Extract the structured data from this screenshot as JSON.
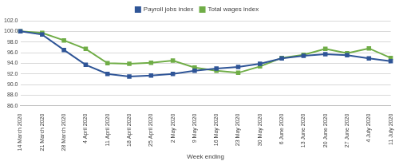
{
  "chart_data": {
    "type": "line",
    "x_label": "Week ending",
    "categories": [
      "14 March 2020",
      "21 March 2020",
      "28 March 2020",
      "4 April 2020",
      "11 April 2020",
      "18 April 2020",
      "25 April 2020",
      "2 May 2020",
      "9 May 2020",
      "16 May 2020",
      "23 May 2020",
      "30 May 2020",
      "6 June 2020",
      "13 June 2020",
      "20 June 2020",
      "27 June 2020",
      "4 July 2020",
      "11 July 2020"
    ],
    "series": [
      {
        "name": "Payroll jobs index",
        "color": "#2f5597",
        "marker": "square",
        "line_style": "solid",
        "values": [
          100.0,
          99.4,
          96.5,
          93.7,
          92.0,
          91.5,
          91.7,
          92.0,
          92.6,
          93.0,
          93.3,
          93.9,
          94.9,
          95.4,
          95.7,
          95.5,
          94.9,
          94.4
        ]
      },
      {
        "name": "Total wages index",
        "color": "#70ad47",
        "marker": "square",
        "line_style": "solid",
        "values": [
          100.0,
          99.7,
          98.3,
          96.7,
          94.0,
          93.9,
          94.1,
          94.5,
          93.2,
          92.6,
          92.2,
          93.4,
          95.0,
          95.6,
          96.7,
          95.9,
          96.8,
          95.0
        ]
      }
    ],
    "ylim": [
      86,
      102
    ],
    "yticks": [
      {
        "value": 86,
        "label": "86.0"
      },
      {
        "value": 88,
        "label": "88.0"
      },
      {
        "value": 90,
        "label": "90.0"
      },
      {
        "value": 92,
        "label": "92.0"
      },
      {
        "value": 94,
        "label": "94.0"
      },
      {
        "value": 96,
        "label": "96.0"
      },
      {
        "value": 98,
        "label": "98.0"
      },
      {
        "value": 100,
        "label": "100.0"
      },
      {
        "value": 102,
        "label": "102.0"
      }
    ],
    "grid": true,
    "legend": "top"
  }
}
